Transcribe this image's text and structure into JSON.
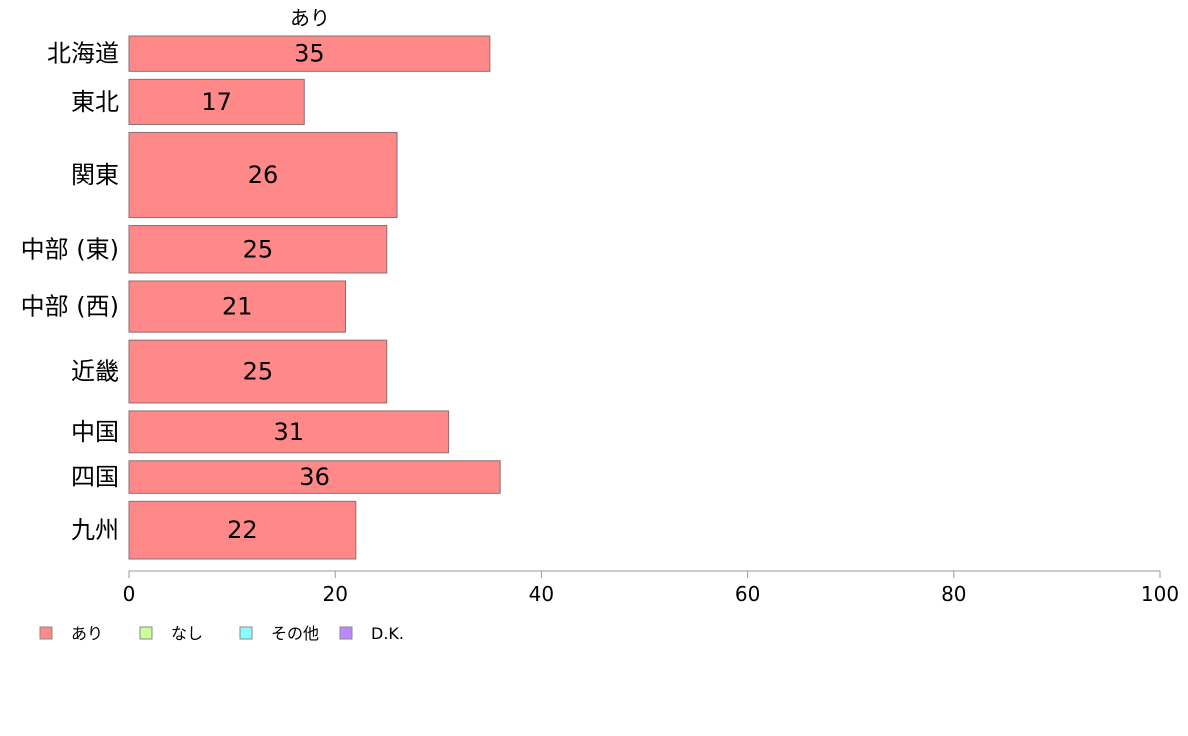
{
  "chart_data": {
    "type": "bar",
    "orientation": "horizontal",
    "title": "",
    "series_label": "あり",
    "categories": [
      "北海道",
      "東北",
      "関東",
      "中部 (東)",
      "中部 (西)",
      "近畿",
      "中国",
      "四国",
      "九州"
    ],
    "values": [
      35,
      17,
      26,
      25,
      21,
      25,
      31,
      36,
      22
    ],
    "data_labels": [
      "35",
      "17",
      "26",
      "25",
      "21",
      "25",
      "31",
      "36",
      "22"
    ],
    "bar_weights": [
      0.76,
      0.97,
      1.83,
      1.02,
      1.1,
      1.35,
      0.9,
      0.7,
      1.24
    ],
    "xlim": [
      0,
      100
    ],
    "xticks": [
      0,
      20,
      40,
      60,
      80,
      100
    ],
    "xtick_labels": [
      "0",
      "20",
      "40",
      "60",
      "80",
      "100"
    ],
    "grid": false,
    "legend": {
      "placement": "bottom-left",
      "entries": [
        {
          "label": "あり",
          "color": "#ff8888"
        },
        {
          "label": "なし",
          "color": "#ccff99"
        },
        {
          "label": "その他",
          "color": "#88ffff"
        },
        {
          "label": "D.K.",
          "color": "#bb88ff"
        }
      ]
    },
    "colors": {
      "bar": "#ff8888",
      "bar_border": "#8a6f6f",
      "axis": "#999999"
    }
  }
}
